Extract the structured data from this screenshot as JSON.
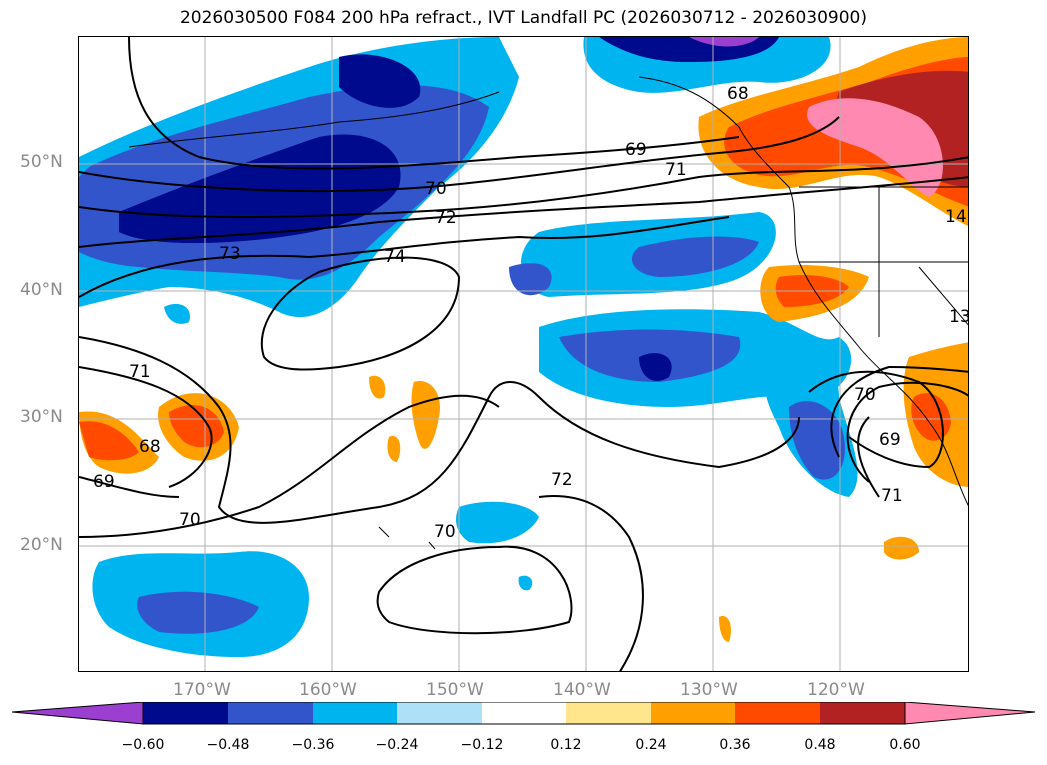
{
  "title": "2026030500 F084 200 hPa refract., IVT Landfall PC (2026030712 - 2026030900)",
  "lat_labels": [
    "50°N",
    "40°N",
    "30°N",
    "20°N"
  ],
  "lon_labels": [
    "170°W",
    "160°W",
    "150°W",
    "140°W",
    "130°W",
    "120°W"
  ],
  "colorbar": {
    "ticks": [
      "−0.60",
      "−0.48",
      "−0.36",
      "−0.24",
      "−0.12",
      "0.12",
      "0.24",
      "0.36",
      "0.48",
      "0.60"
    ],
    "colors": [
      "#9a3fd0",
      "#000a8c",
      "#3355cc",
      "#00b4f0",
      "#aee0f8",
      "#ffffff",
      "#ffe68c",
      "#ffa000",
      "#ff4a00",
      "#b22222",
      "#ff89b0"
    ]
  },
  "contour_labels": [
    "68",
    "69",
    "70",
    "71",
    "72",
    "73",
    "74",
    "71",
    "68",
    "69",
    "70",
    "72",
    "70",
    "70",
    "69",
    "71",
    "13",
    "14"
  ],
  "colors": {
    "land_outline": "#000000",
    "grid": "#b0b0b0",
    "axis_text": "#8a8a8a"
  }
}
